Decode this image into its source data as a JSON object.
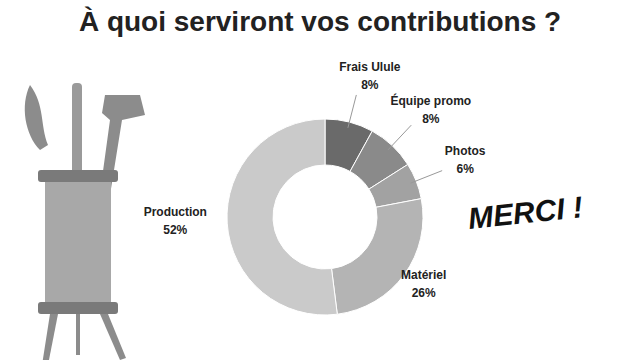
{
  "chart_data": {
    "type": "donut",
    "title": "À quoi serviront vos contributions ?",
    "categories": [
      "Frais Ulule",
      "Équipe promo",
      "Photos",
      "Matériel",
      "Production"
    ],
    "values": [
      8,
      8,
      6,
      26,
      52
    ],
    "value_labels": [
      "8%",
      "8%",
      "6%",
      "26%",
      "52%"
    ],
    "colors": [
      "#6a6a6a",
      "#8a8a8a",
      "#a2a2a2",
      "#b4b4b4",
      "#cacaca"
    ],
    "data_labels": true,
    "annotations": [
      "MERCI !"
    ]
  }
}
